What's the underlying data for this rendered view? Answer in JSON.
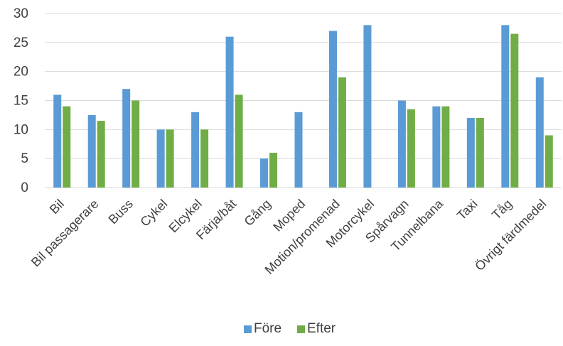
{
  "chart_data": {
    "type": "bar",
    "categories": [
      "Bil",
      "Bil passagerare",
      "Buss",
      "Cykel",
      "Elcykel",
      "Färja/båt",
      "Gång",
      "Moped",
      "Motion/promenad",
      "Motorcykel",
      "Spårvagn",
      "Tunnelbana",
      "Taxi",
      "Tåg",
      "Övrigt färdmedel"
    ],
    "series": [
      {
        "name": "Före",
        "color": "#5b9bd5",
        "values": [
          16,
          12.5,
          17,
          10,
          13,
          26,
          5,
          13,
          27,
          28,
          15,
          14,
          12,
          28,
          19
        ]
      },
      {
        "name": "Efter",
        "color": "#70ad47",
        "values": [
          14,
          11.5,
          15,
          10,
          10,
          16,
          6,
          null,
          19,
          null,
          13.5,
          14,
          12,
          26.5,
          9
        ]
      }
    ],
    "yticks": [
      "0",
      "5",
      "10",
      "15",
      "20",
      "25",
      "30"
    ],
    "ylim": [
      0,
      30
    ],
    "grid": true,
    "legend": "bottom"
  }
}
